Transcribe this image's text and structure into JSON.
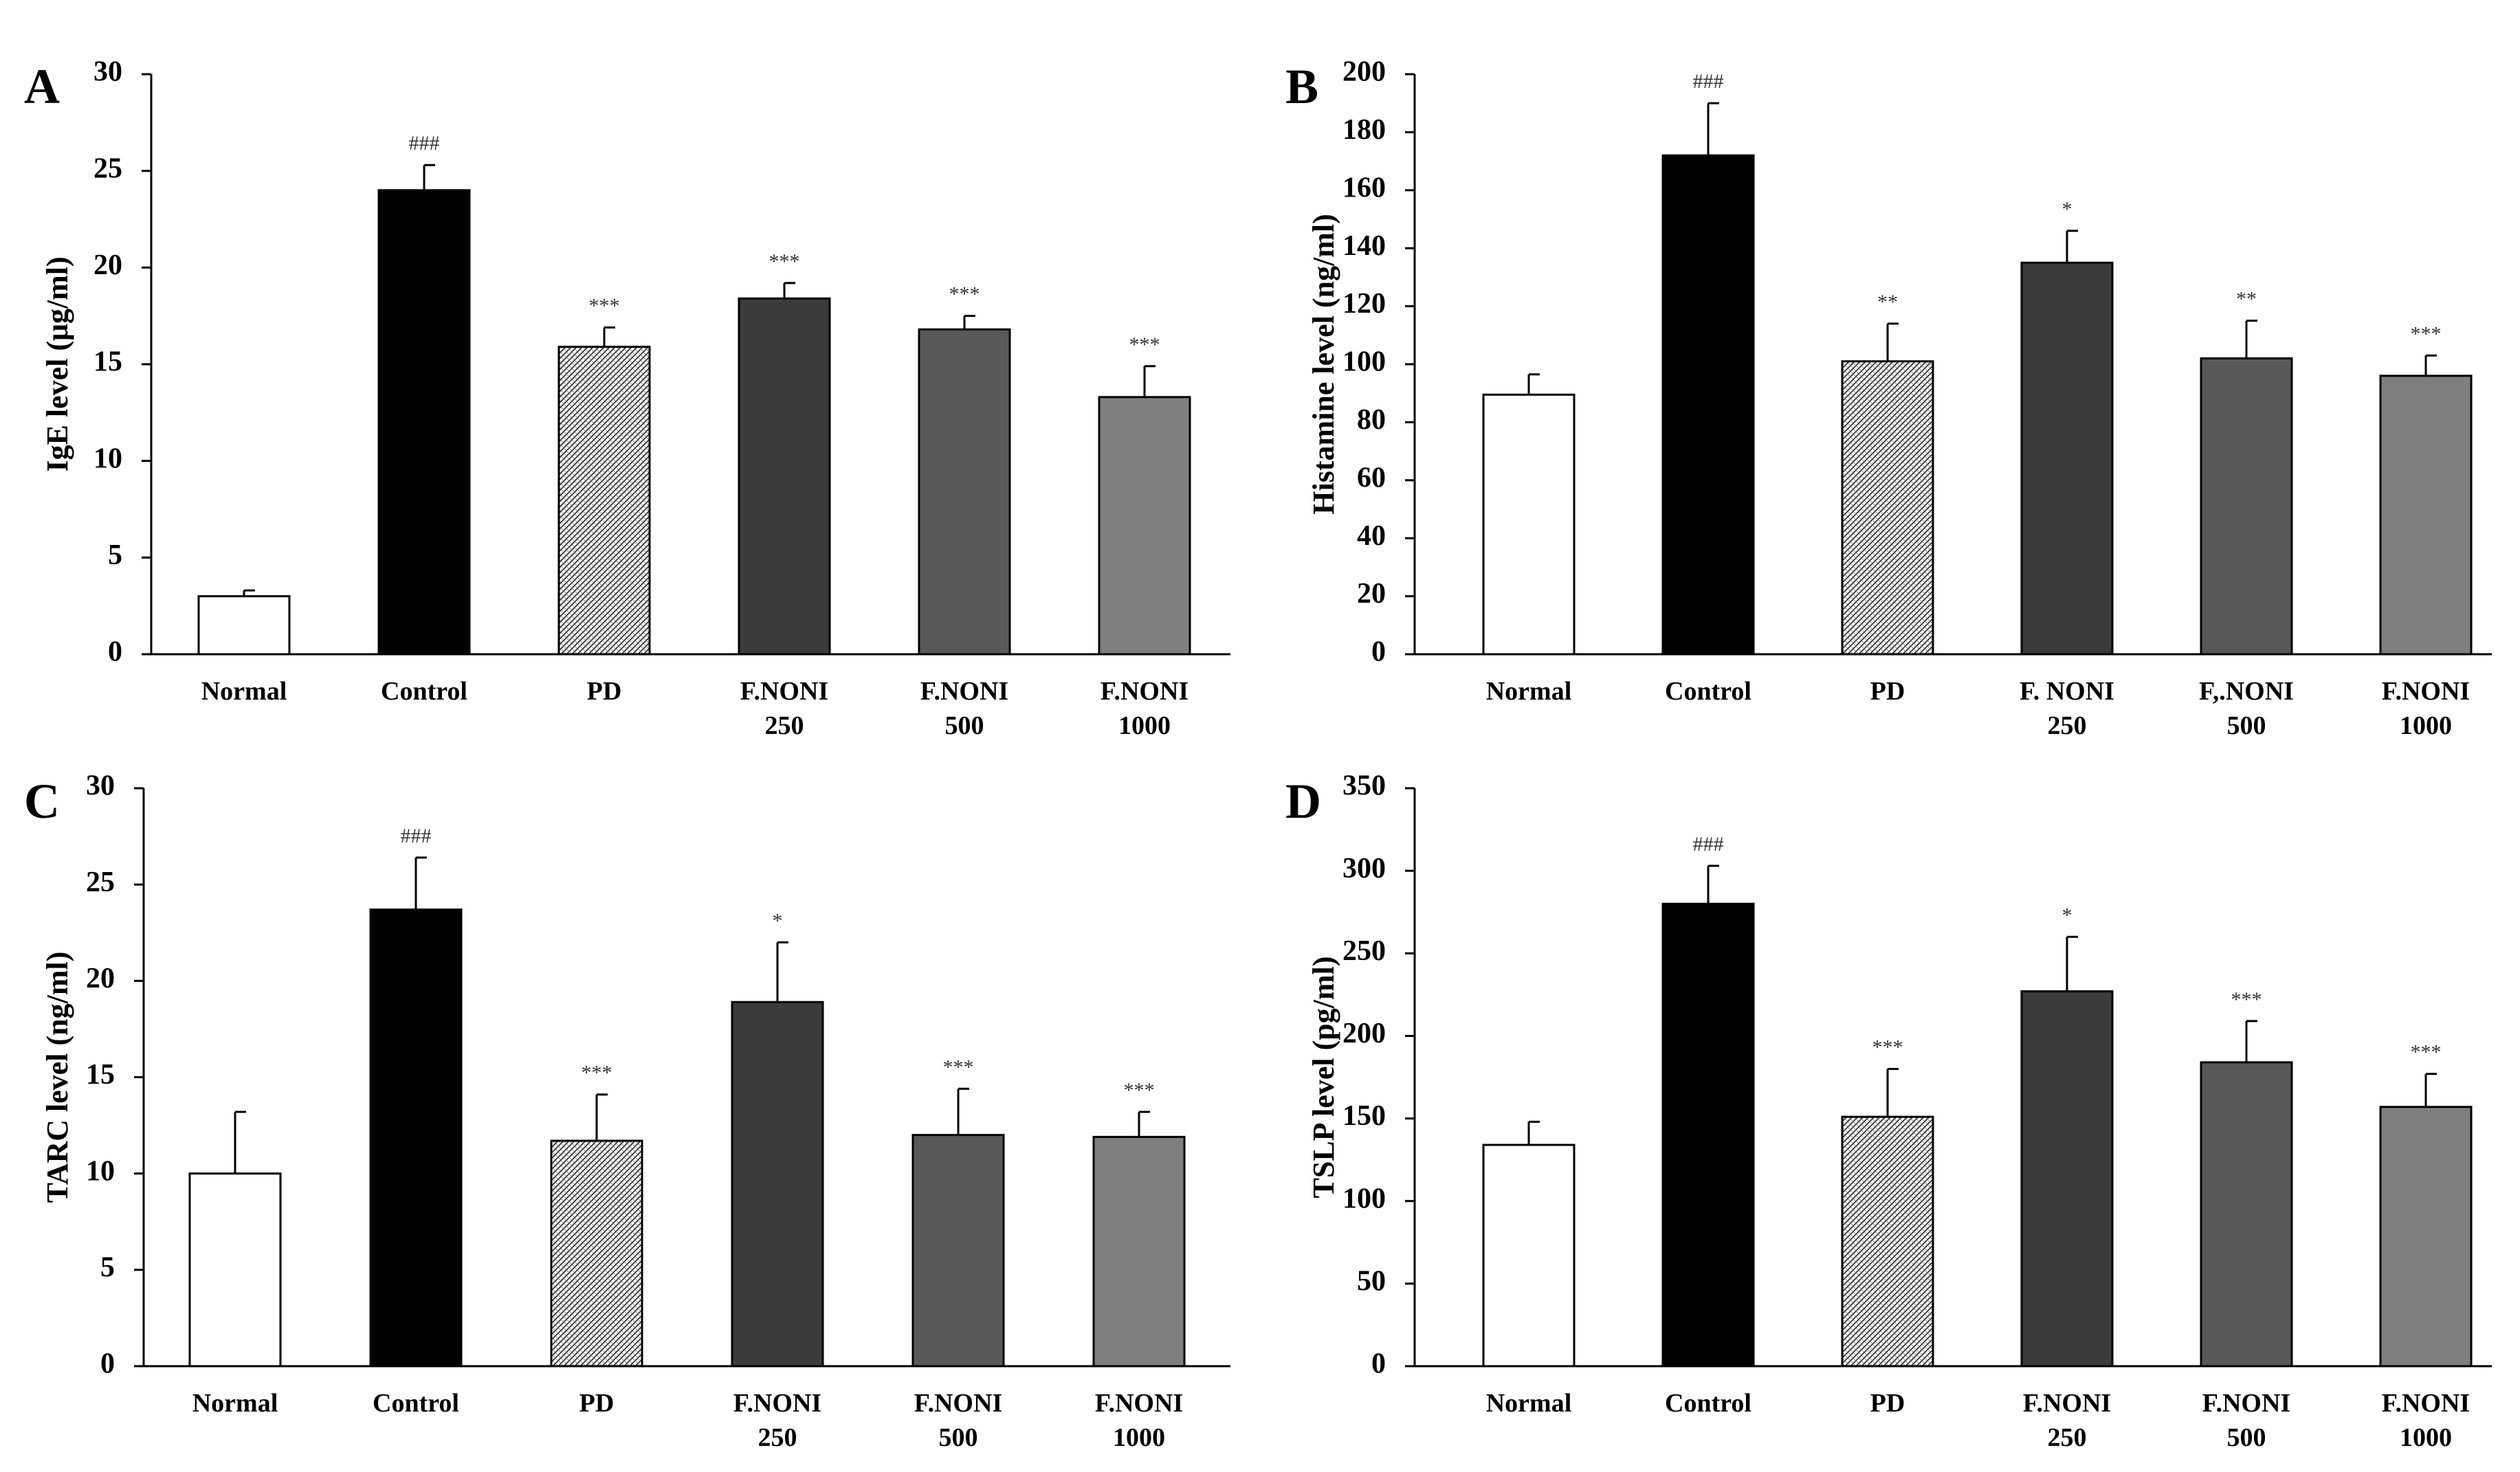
{
  "chart_data": [
    {
      "panel": "A",
      "type": "bar",
      "ylabel": "IgE level (μg/ml)",
      "ylim": [
        0,
        30
      ],
      "yticks": [
        0,
        5,
        10,
        15,
        20,
        25,
        30
      ],
      "categories": [
        [
          "Normal"
        ],
        [
          "Control"
        ],
        [
          "PD"
        ],
        [
          "F.NONI",
          "250"
        ],
        [
          "F.NONI",
          "500"
        ],
        [
          "F.NONI",
          "1000"
        ]
      ],
      "values": [
        3.0,
        24.0,
        15.9,
        18.4,
        16.8,
        13.3
      ],
      "errors": [
        0.3,
        1.3,
        1.0,
        0.8,
        0.7,
        1.6
      ],
      "significance": [
        "",
        "###",
        "***",
        "***",
        "***",
        "***"
      ]
    },
    {
      "panel": "B",
      "type": "bar",
      "ylabel": "Histamine level (ng/ml)",
      "ylim": [
        0,
        200
      ],
      "yticks": [
        0,
        20,
        40,
        60,
        80,
        100,
        120,
        140,
        160,
        180,
        200
      ],
      "categories": [
        [
          "Normal"
        ],
        [
          "Control"
        ],
        [
          "PD"
        ],
        [
          "F. NONI",
          "250"
        ],
        [
          "F,.NONI",
          "500"
        ],
        [
          "F.NONI",
          "1000"
        ]
      ],
      "values": [
        89.5,
        172.0,
        101.0,
        135.0,
        102.0,
        96.0
      ],
      "errors": [
        7.0,
        18.0,
        13.0,
        11.0,
        13.0,
        7.0
      ],
      "significance": [
        "",
        "###",
        "**",
        "*",
        "**",
        "***"
      ]
    },
    {
      "panel": "C",
      "type": "bar",
      "ylabel": "TARC level (ng/ml)",
      "ylim": [
        0,
        30
      ],
      "yticks": [
        0,
        5,
        10,
        15,
        20,
        25,
        30
      ],
      "categories": [
        [
          "Normal"
        ],
        [
          "Control"
        ],
        [
          "PD"
        ],
        [
          "F.NONI",
          "250"
        ],
        [
          "F.NONI",
          "500"
        ],
        [
          "F.NONI",
          "1000"
        ]
      ],
      "values": [
        10.0,
        23.7,
        11.7,
        18.9,
        12.0,
        11.9
      ],
      "errors": [
        3.2,
        2.7,
        2.4,
        3.1,
        2.4,
        1.3
      ],
      "significance": [
        "",
        "###",
        "***",
        "*",
        "***",
        "***"
      ]
    },
    {
      "panel": "D",
      "type": "bar",
      "ylabel": "TSLP level (pg/ml)",
      "ylim": [
        0,
        350
      ],
      "yticks": [
        0,
        50,
        100,
        150,
        200,
        250,
        300,
        350
      ],
      "categories": [
        [
          "Normal"
        ],
        [
          "Control"
        ],
        [
          "PD"
        ],
        [
          "F.NONI",
          "250"
        ],
        [
          "F.NONI",
          "500"
        ],
        [
          "F.NONI",
          "1000"
        ]
      ],
      "values": [
        134.0,
        280.0,
        151.0,
        227.0,
        184.0,
        157.0
      ],
      "errors": [
        14.0,
        23.0,
        29.0,
        33.0,
        25.0,
        20.0
      ],
      "significance": [
        "",
        "###",
        "***",
        "*",
        "***",
        "***"
      ]
    }
  ],
  "colors": {
    "bar_fills": [
      "#ffffff",
      "#000000",
      "pattern-crosshatch",
      "#3b3b3b",
      "#595959",
      "#7f7f7f"
    ],
    "stroke": "#000000",
    "significance_text": "#333333"
  }
}
